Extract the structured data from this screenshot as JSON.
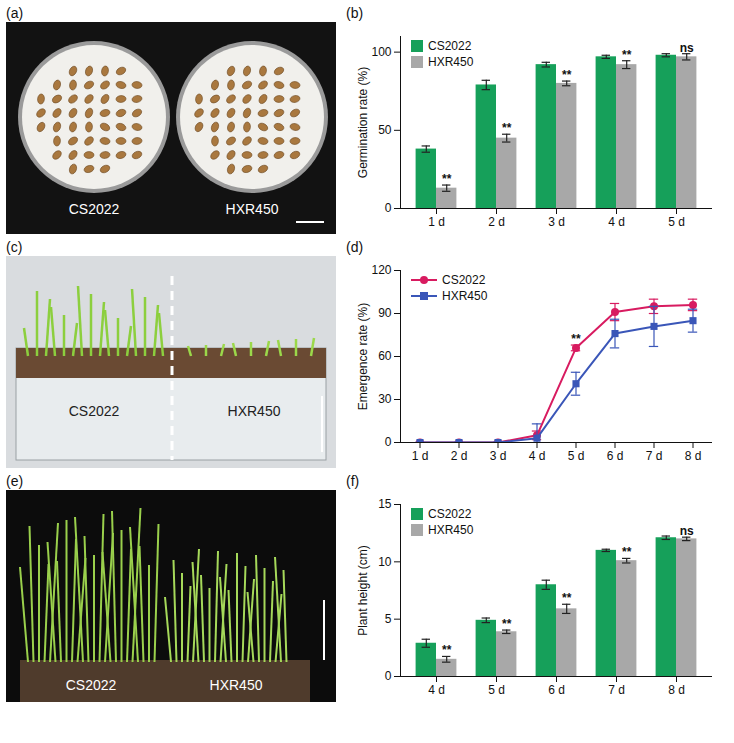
{
  "photos": [
    {
      "panel": "(a)",
      "labels": [
        "CS2022",
        "HXR450"
      ]
    },
    {
      "panel": "(c)",
      "labels": [
        "CS2022",
        "HXR450"
      ]
    },
    {
      "panel": "(e)",
      "labels": [
        "CS2022",
        "HXR450"
      ]
    }
  ],
  "chart_data": [
    {
      "panel": "(b)",
      "type": "bar",
      "y_label": "Germination rate (%)",
      "categories": [
        "1 d",
        "2 d",
        "3 d",
        "4 d",
        "5 d"
      ],
      "series": [
        {
          "name": "CS2022",
          "color": "#16a05a",
          "values": [
            38,
            79,
            92,
            97,
            98
          ],
          "errors": [
            2,
            3,
            1.5,
            1,
            1
          ]
        },
        {
          "name": "HXR450",
          "color": "#a8a8a8",
          "values": [
            13,
            45,
            80,
            92,
            97
          ],
          "errors": [
            2,
            2.5,
            1.5,
            2.5,
            2
          ],
          "annotations": [
            "**",
            "**",
            "**",
            "**",
            "ns"
          ]
        }
      ],
      "ylim": [
        0,
        110
      ],
      "yticks": [
        0,
        50,
        100
      ],
      "legend": "top-left"
    },
    {
      "panel": "(d)",
      "type": "line",
      "y_label": "Emergence rate (%)",
      "categories": [
        "1 d",
        "2 d",
        "3 d",
        "4 d",
        "5 d",
        "6 d",
        "7 d",
        "8 d"
      ],
      "series": [
        {
          "name": "CS2022",
          "color": "#d81b60",
          "marker": "circle",
          "line_style": "solid",
          "values": [
            0,
            0,
            0,
            5,
            66,
            91,
            95,
            96
          ],
          "errors": [
            0,
            0,
            0,
            3,
            2,
            6,
            5,
            4
          ],
          "annotations": [
            null,
            null,
            null,
            null,
            "**",
            null,
            null,
            null
          ]
        },
        {
          "name": "HXR450",
          "color": "#3a56b8",
          "marker": "square",
          "line_style": "solid",
          "values": [
            0,
            0,
            0,
            3,
            41,
            76,
            81,
            85
          ],
          "errors": [
            0,
            0,
            0,
            10,
            8,
            10,
            14,
            8
          ]
        }
      ],
      "ylim": [
        0,
        120
      ],
      "yticks": [
        0,
        30,
        60,
        90,
        120
      ],
      "legend": "top-left"
    },
    {
      "panel": "(f)",
      "type": "bar",
      "y_label": "Plant height (cm)",
      "categories": [
        "4 d",
        "5 d",
        "6 d",
        "7 d",
        "8 d"
      ],
      "series": [
        {
          "name": "CS2022",
          "color": "#16a05a",
          "values": [
            2.9,
            4.9,
            8.0,
            11.0,
            12.1
          ],
          "errors": [
            0.35,
            0.2,
            0.4,
            0.1,
            0.15
          ]
        },
        {
          "name": "HXR450",
          "color": "#a8a8a8",
          "values": [
            1.5,
            3.9,
            5.9,
            10.1,
            12.0
          ],
          "errors": [
            0.25,
            0.15,
            0.4,
            0.2,
            0.15
          ],
          "annotations": [
            "**",
            "**",
            "**",
            "**",
            "ns"
          ]
        }
      ],
      "ylim": [
        0,
        15
      ],
      "yticks": [
        0,
        5,
        10,
        15
      ],
      "legend": "top-left"
    }
  ]
}
